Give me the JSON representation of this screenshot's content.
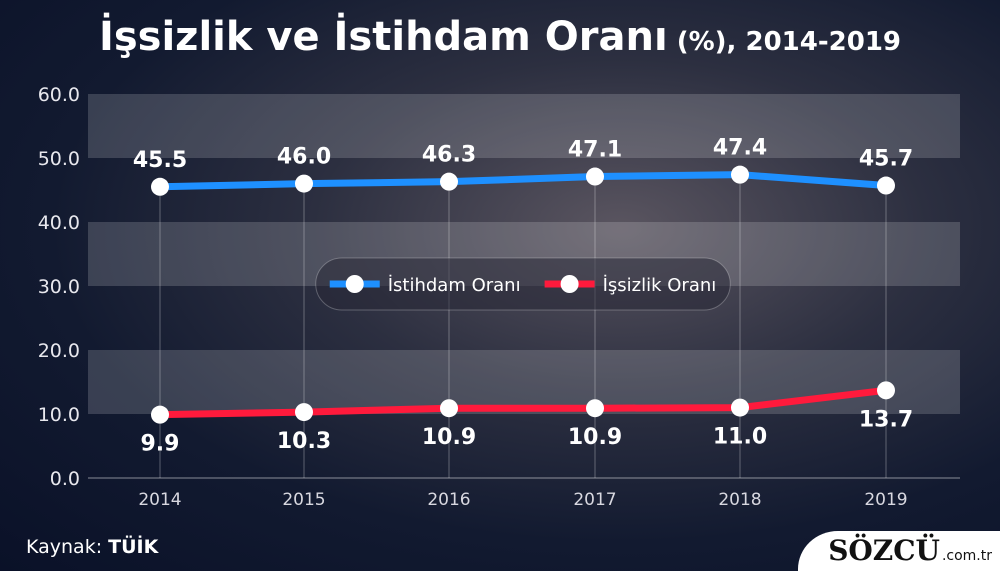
{
  "title": {
    "main": "İşsizlik ve İstihdam Oranı",
    "sub": " (%), 2014-2019"
  },
  "source": {
    "label": "Kaynak:",
    "value": "TÜİK"
  },
  "logo": {
    "brand": "SÖZCÜ",
    "domain": ".com.tr"
  },
  "chart_data": {
    "type": "line",
    "title": "İşsizlik ve İstihdam Oranı (%), 2014-2019",
    "x": [
      "2014",
      "2015",
      "2016",
      "2017",
      "2018",
      "2019"
    ],
    "ylim": [
      0,
      60
    ],
    "yticks": [
      "0.0",
      "10.0",
      "20.0",
      "30.0",
      "40.0",
      "50.0",
      "60.0"
    ],
    "legend_position": "center",
    "series": [
      {
        "name": "İstihdam Oranı",
        "color": "#1e90ff",
        "values": [
          45.5,
          46.0,
          46.3,
          47.1,
          47.4,
          45.7
        ],
        "labels": [
          "45.5",
          "46.0",
          "46.3",
          "47.1",
          "47.4",
          "45.7"
        ],
        "label_pos": "above"
      },
      {
        "name": "İşsizlik Oranı",
        "color": "#ff1a3c",
        "values": [
          9.9,
          10.3,
          10.9,
          10.9,
          11.0,
          13.7
        ],
        "labels": [
          "9.9",
          "10.3",
          "10.9",
          "10.9",
          "11.0",
          "13.7"
        ],
        "label_pos": "below"
      }
    ]
  }
}
